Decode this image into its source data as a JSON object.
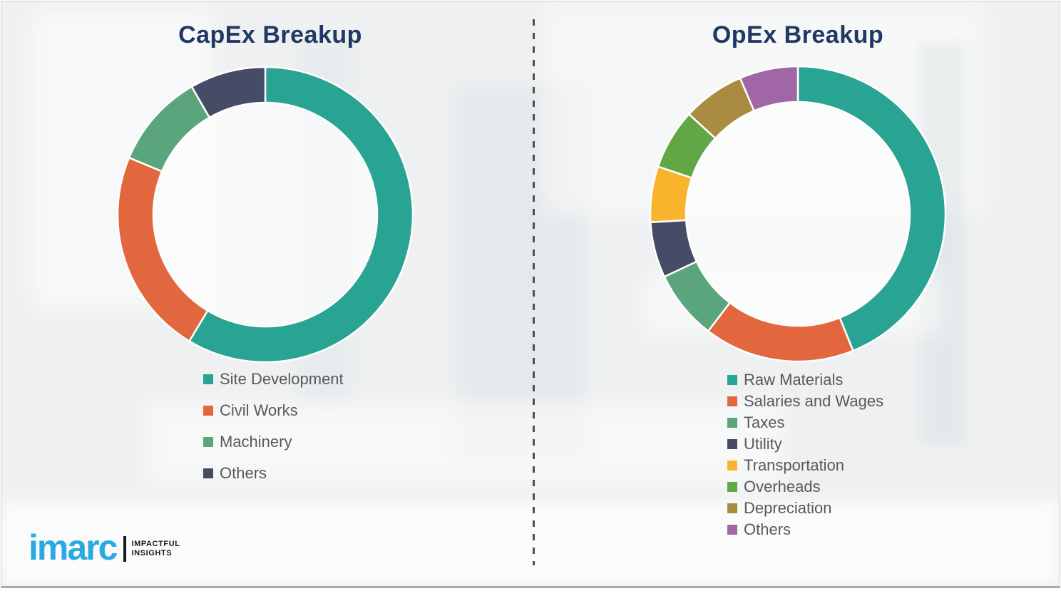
{
  "page": {
    "background_color": "#eef0f1",
    "border_color": "#a9a9a9",
    "divider": {
      "style": "dashed-vertical",
      "color": "#4f4f4f"
    }
  },
  "styles": {
    "title_color": "#1f3864",
    "legend_text_color": "#595959"
  },
  "chart_data": [
    {
      "type": "pie",
      "variant": "donut",
      "title": "CapEx Breakup",
      "legend_position": "below-left",
      "value_labels_shown": false,
      "start_angle_deg": 0,
      "direction": "clockwise",
      "categories": [
        "Site Development",
        "Civil Works",
        "Machinery",
        "Others"
      ],
      "values": [
        58.6,
        22.7,
        10.4,
        8.3
      ],
      "unit": "% (estimated from arc angles)",
      "colors": [
        "#2aa492",
        "#e2673f",
        "#5aa57c",
        "#464c66"
      ]
    },
    {
      "type": "pie",
      "variant": "donut",
      "title": "OpEx Breakup",
      "legend_position": "below-left",
      "value_labels_shown": false,
      "start_angle_deg": 0,
      "direction": "clockwise",
      "categories": [
        "Raw Materials",
        "Salaries and Wages",
        "Taxes",
        "Utility",
        "Transportation",
        "Overheads",
        "Depreciation",
        "Others"
      ],
      "values": [
        43.9,
        16.5,
        7.6,
        6.1,
        6.1,
        6.6,
        6.8,
        6.4
      ],
      "unit": "% (estimated from arc angles)",
      "colors": [
        "#2aa492",
        "#e2673f",
        "#5aa57c",
        "#464c66",
        "#f7b42c",
        "#61a746",
        "#a98c42",
        "#a066a6"
      ]
    }
  ],
  "branding": {
    "logo_text": "imarc",
    "tagline_line1": "IMPACTFUL",
    "tagline_line2": "INSIGHTS",
    "logo_color": "#29abe2"
  }
}
